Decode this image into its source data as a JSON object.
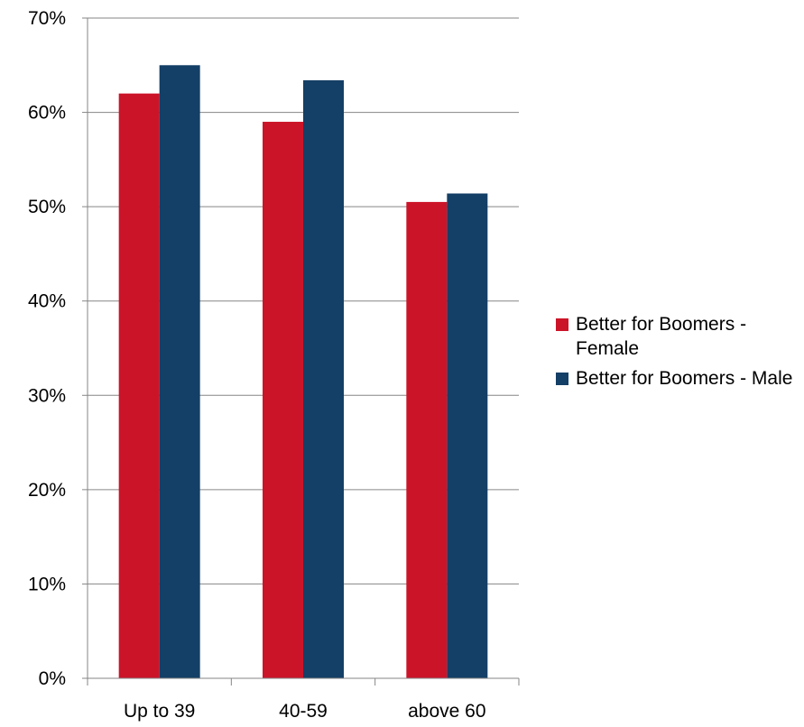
{
  "chart_data": {
    "type": "bar",
    "categories": [
      "Up to 39",
      "40-59",
      "above 60"
    ],
    "series": [
      {
        "name": "Better for Boomers - Female",
        "color": "#cc1429",
        "values": [
          62.0,
          59.0,
          50.5
        ]
      },
      {
        "name": "Better for Boomers - Male",
        "color": "#143f66",
        "values": [
          65.0,
          63.4,
          51.4
        ]
      }
    ],
    "ylim": [
      0,
      70
    ],
    "yticks": [
      0,
      10,
      20,
      30,
      40,
      50,
      60,
      70
    ],
    "ytick_labels": [
      "0%",
      "10%",
      "20%",
      "30%",
      "40%",
      "50%",
      "60%",
      "70%"
    ],
    "grid": true,
    "legend_position": "right"
  }
}
